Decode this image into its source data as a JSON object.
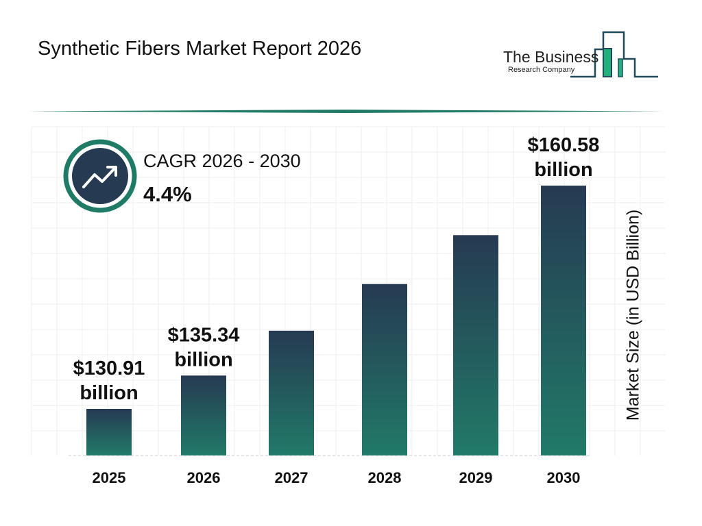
{
  "header": {
    "title": "Synthetic Fibers Market Report 2026"
  },
  "logo": {
    "line1": "The Business",
    "line2": "Research Company"
  },
  "cagr": {
    "label": "CAGR 2026 - 2030",
    "value": "4.4%",
    "icon": "trending-up-icon"
  },
  "colors": {
    "bar_top": "#263a52",
    "bar_bottom": "#217a68",
    "accent": "#1f7a66",
    "logo_green": "#21b07e",
    "logo_navy": "#1e4a5a"
  },
  "chart_data": {
    "type": "bar",
    "title": "",
    "xlabel": "",
    "ylabel": "Market Size (in USD Billion)",
    "categories": [
      "2025",
      "2026",
      "2027",
      "2028",
      "2029",
      "2030"
    ],
    "values": [
      130.91,
      135.34,
      141.3,
      147.5,
      154.0,
      160.58
    ],
    "data_labels": [
      [
        "$130.91",
        "billion"
      ],
      [
        "$135.34",
        "billion"
      ],
      null,
      null,
      null,
      [
        "$160.58",
        "billion"
      ]
    ],
    "grid": true,
    "legend": "none"
  }
}
